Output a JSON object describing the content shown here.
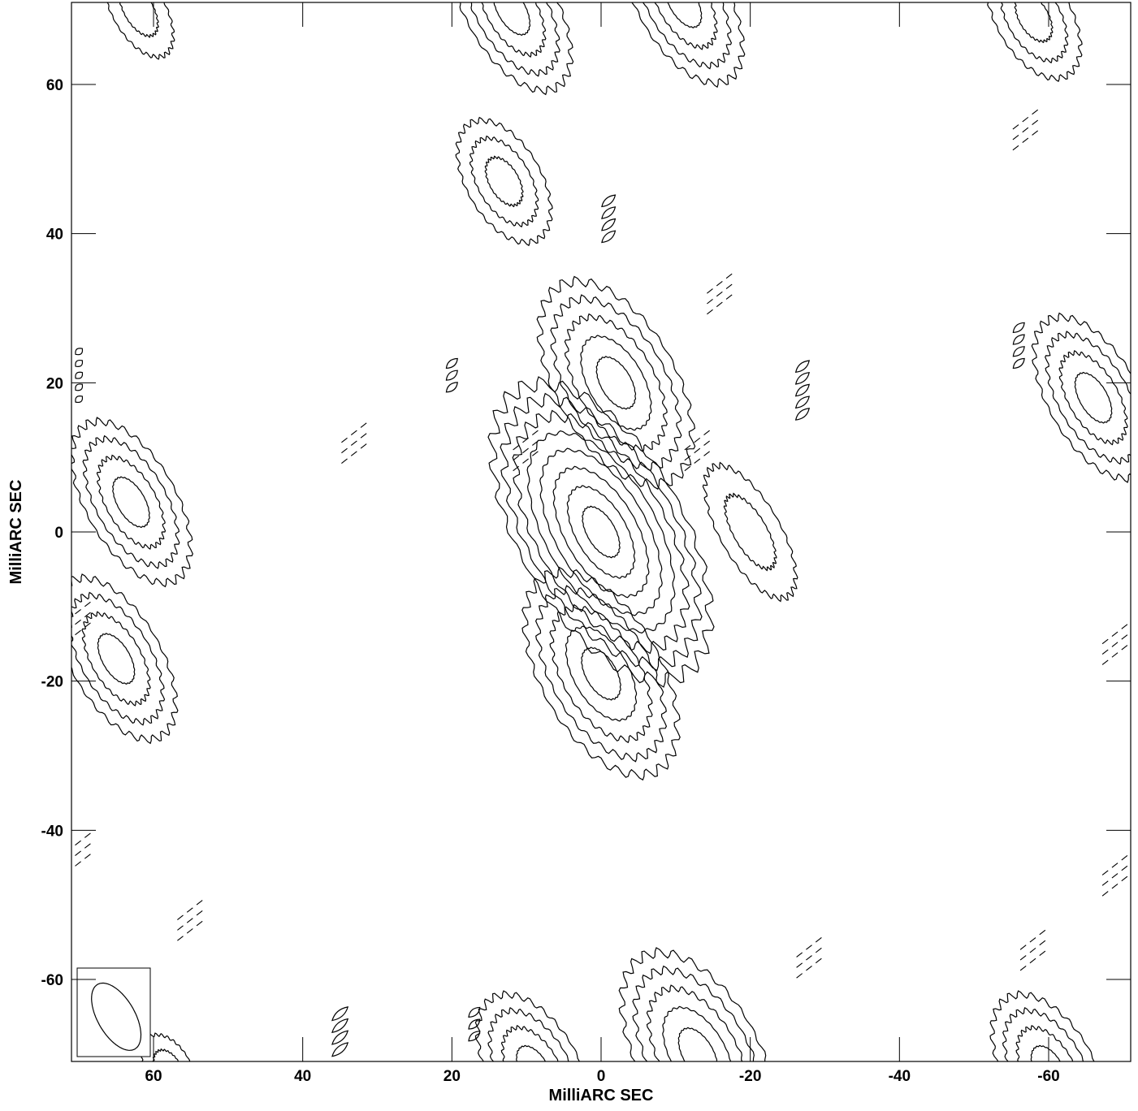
{
  "chart_data": {
    "type": "contour",
    "xlabel": "MilliARC SEC",
    "ylabel": "MilliARC SEC",
    "xlim": [
      71,
      -71
    ],
    "ylim": [
      -71,
      71
    ],
    "xticks": [
      60,
      40,
      20,
      0,
      -20,
      -40,
      -60
    ],
    "yticks": [
      60,
      40,
      20,
      0,
      -20,
      -40,
      -60
    ],
    "xtick_labels": [
      "60",
      "40",
      "20",
      "0",
      "-20",
      "-40",
      "-60"
    ],
    "ytick_labels": [
      "60",
      "40",
      "20",
      "0",
      "-20",
      "-40",
      "-60"
    ],
    "beam": {
      "x": 65,
      "y": -65,
      "major": 10,
      "minor": 5,
      "pa_deg": 30
    },
    "components": [
      {
        "x": 0,
        "y": 0,
        "major": 22,
        "minor": 11,
        "pa_deg": 30,
        "levels": 8
      },
      {
        "x": -2,
        "y": 20,
        "major": 15,
        "minor": 8,
        "pa_deg": 30,
        "levels": 5
      },
      {
        "x": 0,
        "y": -19,
        "major": 15,
        "minor": 8,
        "pa_deg": 30,
        "levels": 5
      },
      {
        "x": -20,
        "y": 0,
        "major": 10,
        "minor": 4,
        "pa_deg": 30,
        "levels": 2
      },
      {
        "x": 13,
        "y": 47,
        "major": 9,
        "minor": 5,
        "pa_deg": 30,
        "levels": 3
      },
      {
        "x": 63,
        "y": 4,
        "major": 12,
        "minor": 6,
        "pa_deg": 30,
        "levels": 4
      },
      {
        "x": 65,
        "y": -17,
        "major": 12,
        "minor": 6,
        "pa_deg": 30,
        "levels": 4
      },
      {
        "x": -66,
        "y": 18,
        "major": 12,
        "minor": 6,
        "pa_deg": 30,
        "levels": 4
      },
      {
        "x": 12,
        "y": 70,
        "major": 12,
        "minor": 6,
        "pa_deg": 30,
        "levels": 4
      },
      {
        "x": -11,
        "y": 71,
        "major": 12,
        "minor": 6,
        "pa_deg": 30,
        "levels": 4
      },
      {
        "x": -58,
        "y": 69,
        "major": 9,
        "minor": 5,
        "pa_deg": 30,
        "levels": 3
      },
      {
        "x": 62,
        "y": 70,
        "major": 7,
        "minor": 3.5,
        "pa_deg": 30,
        "levels": 2
      },
      {
        "x": -13,
        "y": -70,
        "major": 15,
        "minor": 8,
        "pa_deg": 30,
        "levels": 5
      },
      {
        "x": 9,
        "y": -72,
        "major": 11,
        "minor": 6,
        "pa_deg": 30,
        "levels": 4
      },
      {
        "x": -60,
        "y": -72,
        "major": 11,
        "minor": 6,
        "pa_deg": 30,
        "levels": 4
      },
      {
        "x": 58,
        "y": -72,
        "major": 5,
        "minor": 3,
        "pa_deg": 30,
        "levels": 2
      }
    ],
    "stripes": [
      {
        "x": -1,
        "y": 42,
        "count": 4,
        "len": 6
      },
      {
        "x": 20,
        "y": 21,
        "count": 3,
        "len": 5
      },
      {
        "x": -27,
        "y": 19,
        "count": 5,
        "len": 6
      },
      {
        "x": -56,
        "y": 25,
        "count": 4,
        "len": 5
      },
      {
        "x": 35,
        "y": -67,
        "count": 4,
        "len": 7
      },
      {
        "x": 17,
        "y": -66,
        "count": 3,
        "len": 5
      },
      {
        "x": 70,
        "y": 21,
        "count": 5,
        "len": 3
      }
    ],
    "negative": [
      {
        "x": -16,
        "y": 32
      },
      {
        "x": -57,
        "y": 54
      },
      {
        "x": 33,
        "y": 12
      },
      {
        "x": 10,
        "y": 11
      },
      {
        "x": -13,
        "y": 11
      },
      {
        "x": 55,
        "y": -52
      },
      {
        "x": -28,
        "y": -57
      },
      {
        "x": -58,
        "y": -56
      },
      {
        "x": -69,
        "y": -15
      },
      {
        "x": -69,
        "y": -46
      },
      {
        "x": 70,
        "y": -12
      },
      {
        "x": 70,
        "y": -43
      }
    ]
  }
}
